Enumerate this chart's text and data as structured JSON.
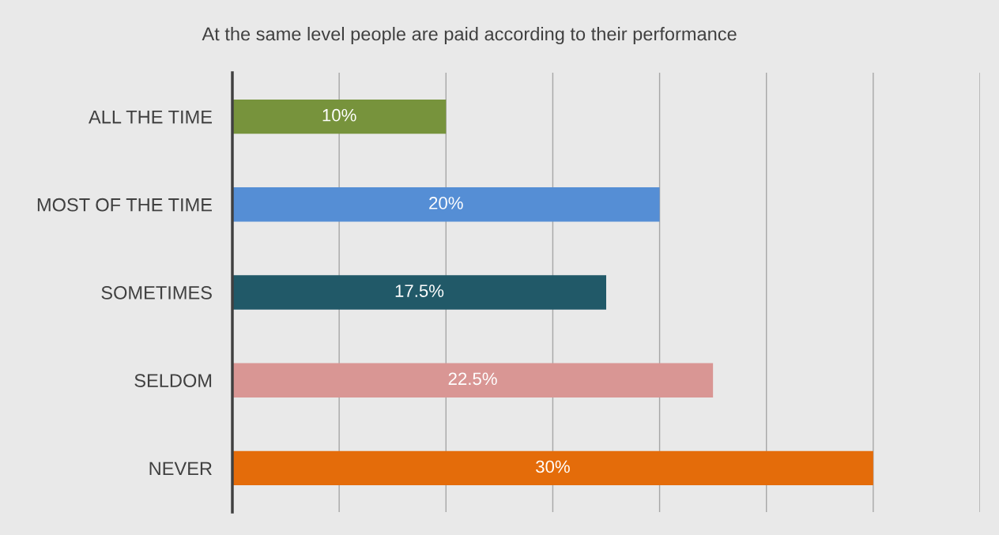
{
  "chart_data": {
    "type": "bar",
    "orientation": "horizontal",
    "title": "At the same level people are paid according to their performance",
    "categories": [
      "ALL THE TIME",
      "MOST OF THE TIME",
      "SOMETIMES",
      "SELDOM",
      "NEVER"
    ],
    "values": [
      10,
      20,
      17.5,
      22.5,
      30
    ],
    "colors": [
      "#77933c",
      "#558ed5",
      "#215968",
      "#d99694",
      "#e46c0a"
    ],
    "value_labels": [
      "10%",
      "20%",
      "17.5%",
      "22.5%",
      "30%"
    ],
    "xlim": [
      0,
      35
    ],
    "xticks": [
      {
        "value": 0,
        "label": null
      },
      {
        "value": 5,
        "label": null
      },
      {
        "value": 10,
        "label": null
      },
      {
        "value": 15,
        "label": null
      },
      {
        "value": 20,
        "label": null
      },
      {
        "value": 25,
        "label": null
      },
      {
        "value": 30,
        "label": null
      },
      {
        "value": 35,
        "label": null
      }
    ],
    "grid": "x",
    "legend": false,
    "tick_labels": "y"
  }
}
